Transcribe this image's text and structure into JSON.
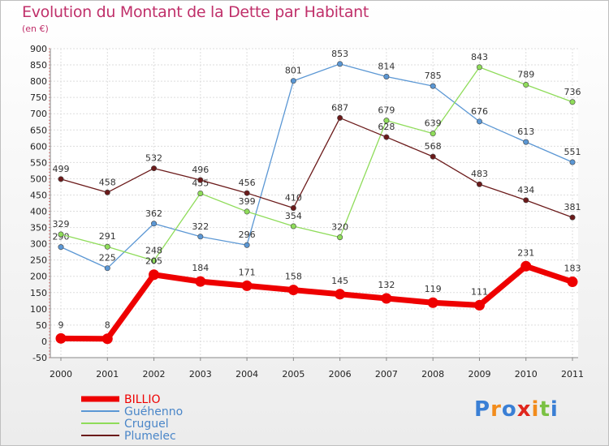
{
  "chart_data": {
    "type": "line",
    "title": "Evolution du Montant de la Dette par Habitant",
    "subtitle": "(en €)",
    "x": [
      "2000",
      "2001",
      "2002",
      "2003",
      "2004",
      "2005",
      "2006",
      "2007",
      "2008",
      "2009",
      "2010",
      "2011"
    ],
    "ylim": [
      -50,
      900
    ],
    "yticks": [
      -50,
      0,
      50,
      100,
      150,
      200,
      250,
      300,
      350,
      400,
      450,
      500,
      550,
      600,
      650,
      700,
      750,
      800,
      850,
      900
    ],
    "grid": true,
    "legend_position": "bottom-left",
    "series": [
      {
        "name": "Guéhenno",
        "color": "#5b97d4",
        "values": [
          290,
          225,
          362,
          322,
          296,
          801,
          853,
          814,
          785,
          676,
          613,
          551
        ]
      },
      {
        "name": "Cruguel",
        "color": "#8fdc5a",
        "values": [
          329,
          291,
          248,
          455,
          399,
          354,
          320,
          679,
          639,
          843,
          789,
          736
        ]
      },
      {
        "name": "Plumelec",
        "color": "#6b1a1a",
        "values": [
          499,
          458,
          532,
          496,
          456,
          410,
          687,
          628,
          568,
          483,
          434,
          381
        ]
      },
      {
        "name": "BILLIO",
        "color": "#ee0000",
        "values": [
          9,
          8,
          205,
          184,
          171,
          158,
          145,
          132,
          119,
          111,
          231,
          183
        ]
      }
    ]
  },
  "logo_text": "Proxiti",
  "logo_colors": [
    "#3a7fd5",
    "#f28c1c",
    "#3a7fd5",
    "#e0261d",
    "#f28c1c",
    "#7ac143",
    "#3a7fd5"
  ]
}
